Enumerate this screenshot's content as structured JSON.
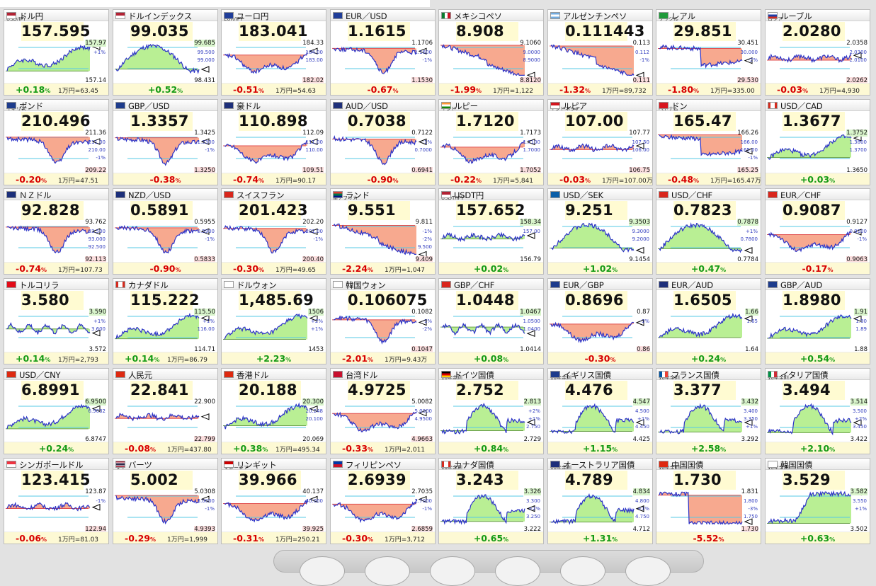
{
  "palette": {
    "up_fill": "#b9ef94",
    "down_fill": "#f7a98f",
    "line": "#2c33c8",
    "ref_line": "#55c9e6",
    "baseline": "#e05050"
  },
  "tiles": [
    {
      "name": "ドル円",
      "sub": "USD/JPY",
      "flag": "us",
      "price": "157.595",
      "change": "+0.18",
      "conv": "1万円=63.45",
      "top": "157.97",
      "bot": "157.14",
      "grid": [
        "+1%"
      ],
      "shape": "rise"
    },
    {
      "name": "ドルインデックス",
      "sub": "",
      "flag": "us",
      "price": "99.035",
      "change": "+0.52",
      "conv": "",
      "top": "99.685",
      "bot": "98.431",
      "grid": [
        "99.500",
        "99.000"
      ],
      "shape": "peak"
    },
    {
      "name": "ユーロ円",
      "sub": "EUR/JPY",
      "flag": "eu",
      "price": "183.041",
      "change": "-0.51",
      "conv": "1万円=54.63",
      "top": "184.33",
      "bot": "182.02",
      "grid": [
        "184.00",
        "183.00"
      ],
      "shape": "sag"
    },
    {
      "name": "EUR／USD",
      "sub": "",
      "flag": "eu",
      "price": "1.1615",
      "change": "-0.67",
      "conv": "",
      "top": "1.1706",
      "bot": "1.1530",
      "grid": [
        "1.1600",
        "-1%"
      ],
      "shape": "dip"
    },
    {
      "name": "メキシコペソ",
      "sub": "",
      "flag": "mx",
      "price": "8.908",
      "change": "-1.99",
      "conv": "1万円=1,122",
      "top": "9.1060",
      "bot": "8.8120",
      "grid": [
        "9.0000",
        "8.9000"
      ],
      "shape": "fall"
    },
    {
      "name": "アルゼンチンペソ",
      "sub": "",
      "flag": "ar",
      "price": "0.111443",
      "change": "-1.32",
      "conv": "1万円=89,732",
      "top": "0.113",
      "bot": "0.111",
      "grid": [
        "0.112",
        "-1%"
      ],
      "shape": "fall"
    },
    {
      "name": "レアル",
      "sub": "ブラジル",
      "flag": "br",
      "price": "29.851",
      "change": "-1.80",
      "conv": "1万円=335.00",
      "top": "30.451",
      "bot": "29.530",
      "grid": [
        "30.000",
        "-2%"
      ],
      "shape": "drop"
    },
    {
      "name": "ルーブル",
      "sub": "ロシア",
      "flag": "ru",
      "price": "2.0280",
      "change": "-0.03",
      "conv": "1万円=4,930",
      "top": "2.0358",
      "bot": "2.0262",
      "grid": [
        "2.0300",
        "2.0100"
      ],
      "shape": "flat"
    },
    {
      "name": "ポンド",
      "sub": "イギリス",
      "flag": "uk",
      "price": "210.496",
      "change": "-0.20",
      "conv": "1万円=47.51",
      "top": "211.36",
      "bot": "209.22",
      "grid": [
        "211.00",
        "210.00",
        "-1%"
      ],
      "shape": "dip"
    },
    {
      "name": "GBP／USD",
      "sub": "",
      "flag": "uk",
      "price": "1.3357",
      "change": "-0.38",
      "conv": "",
      "top": "1.3425",
      "bot": "1.3250",
      "grid": [
        "1.3300",
        "-1%"
      ],
      "shape": "dip"
    },
    {
      "name": "豪ドル",
      "sub": "",
      "flag": "au",
      "price": "110.898",
      "change": "-0.74",
      "conv": "1万円=90.17",
      "top": "112.09",
      "bot": "109.51",
      "grid": [
        "111.00",
        "110.00"
      ],
      "shape": "sag"
    },
    {
      "name": "AUD／USD",
      "sub": "",
      "flag": "au",
      "price": "0.7038",
      "change": "-0.90",
      "conv": "",
      "top": "0.7122",
      "bot": "0.6941",
      "grid": [
        "-1%",
        "0.7000"
      ],
      "shape": "dip"
    },
    {
      "name": "ルピー",
      "sub": "インド",
      "flag": "in",
      "price": "1.7120",
      "change": "-0.22",
      "conv": "1万円=5,841",
      "top": "1.7173",
      "bot": "1.7052",
      "grid": [
        "1.7100",
        "1.7000"
      ],
      "shape": "sag"
    },
    {
      "name": "ルピア",
      "sub": "インドネシア",
      "flag": "id",
      "price": "107.00",
      "change": "-0.03",
      "conv": "1万円=107.00万",
      "top": "107.77",
      "bot": "106.75",
      "grid": [
        "107.50",
        "106.00"
      ],
      "shape": "flat"
    },
    {
      "name": "ドン",
      "sub": "ベトナム",
      "flag": "vn",
      "price": "165.47",
      "change": "-0.48",
      "conv": "1万円=165.47万",
      "top": "166.26",
      "bot": "165.25",
      "grid": [
        "166.00",
        "165.00",
        "-1%"
      ],
      "shape": "drop"
    },
    {
      "name": "USD／CAD",
      "sub": "",
      "flag": "ca",
      "price": "1.3677",
      "change": "+0.03",
      "conv": "",
      "top": "1.3752",
      "bot": "1.3650",
      "grid": [
        "1.3800",
        "1.3700"
      ],
      "shape": "rise"
    },
    {
      "name": "ＮＺドル",
      "sub": "",
      "flag": "nz",
      "price": "92.828",
      "change": "-0.74",
      "conv": "1万円=107.73",
      "top": "93.762",
      "bot": "92.113",
      "grid": [
        "93.500",
        "93.000",
        "92.500"
      ],
      "shape": "dip"
    },
    {
      "name": "NZD／USD",
      "sub": "",
      "flag": "nz",
      "price": "0.5891",
      "change": "-0.90",
      "conv": "",
      "top": "0.5955",
      "bot": "0.5833",
      "grid": [
        "0.5900",
        "-1%"
      ],
      "shape": "dip"
    },
    {
      "name": "スイスフラン",
      "sub": "",
      "flag": "ch",
      "price": "201.423",
      "change": "-0.30",
      "conv": "1万円=49.65",
      "top": "202.20",
      "bot": "200.40",
      "grid": [
        "201.00",
        "-1%"
      ],
      "shape": "dip"
    },
    {
      "name": "ランド",
      "sub": "南アフリカ",
      "flag": "za",
      "price": "9.551",
      "change": "-2.24",
      "conv": "1万円=1,047",
      "top": "9.811",
      "bot": "9.409",
      "grid": [
        "-1%",
        "-2%",
        "9.500"
      ],
      "shape": "fall"
    },
    {
      "name": "USDT円",
      "sub": "USDT/JPY",
      "flag": "us",
      "price": "157.652",
      "change": "+0.02",
      "conv": "",
      "top": "158.34",
      "bot": "156.79",
      "grid": [
        "157.00"
      ],
      "shape": "flat"
    },
    {
      "name": "USD／SEK",
      "sub": "",
      "flag": "se",
      "price": "9.251",
      "change": "+1.02",
      "conv": "",
      "top": "9.3503",
      "bot": "9.1454",
      "grid": [
        "9.3000",
        "9.2000"
      ],
      "shape": "peak"
    },
    {
      "name": "USD／CHF",
      "sub": "",
      "flag": "ch",
      "price": "0.7823",
      "change": "+0.47",
      "conv": "",
      "top": "0.7878",
      "bot": "0.7784",
      "grid": [
        "+1%",
        "0.7800"
      ],
      "shape": "peak"
    },
    {
      "name": "EUR／CHF",
      "sub": "",
      "flag": "ch",
      "price": "0.9087",
      "change": "-0.17",
      "conv": "",
      "top": "0.9127",
      "bot": "0.9063",
      "grid": [
        "0.9100",
        "-1%"
      ],
      "shape": "sag"
    },
    {
      "name": "トルコリラ",
      "sub": "",
      "flag": "tr",
      "price": "3.580",
      "change": "+0.14",
      "conv": "1万円=2,793",
      "top": "3.590",
      "bot": "3.572",
      "grid": [
        "+1%",
        "3.600"
      ],
      "shape": "noisy"
    },
    {
      "name": "カナダドル",
      "sub": "",
      "flag": "ca",
      "price": "115.222",
      "change": "+0.14",
      "conv": "1万円=86.79",
      "top": "115.50",
      "bot": "114.71",
      "grid": [
        "+1%",
        "116.00"
      ],
      "shape": "rise"
    },
    {
      "name": "ドルウォン",
      "sub": "",
      "flag": "kr",
      "price": "1,485.69",
      "change": "+2.23",
      "conv": "",
      "top": "1506",
      "bot": "1453",
      "grid": [
        "+2%",
        "+1%"
      ],
      "shape": "rise"
    },
    {
      "name": "韓国ウォン",
      "sub": "",
      "flag": "kr",
      "price": "0.106075",
      "change": "-2.01",
      "conv": "1万円=9.43万",
      "top": "0.1082",
      "bot": "0.1047",
      "grid": [
        "-1%",
        "-2%"
      ],
      "shape": "dip"
    },
    {
      "name": "GBP／CHF",
      "sub": "",
      "flag": "ch",
      "price": "1.0448",
      "change": "+0.08",
      "conv": "",
      "top": "1.0467",
      "bot": "1.0414",
      "grid": [
        "1.0500",
        "1.0400"
      ],
      "shape": "noisy"
    },
    {
      "name": "EUR／GBP",
      "sub": "",
      "flag": "uk",
      "price": "0.8696",
      "change": "-0.30",
      "conv": "",
      "top": "0.87",
      "bot": "0.86",
      "grid": [
        "-1%"
      ],
      "shape": "sag"
    },
    {
      "name": "EUR／AUD",
      "sub": "",
      "flag": "au",
      "price": "1.6505",
      "change": "+0.24",
      "conv": "",
      "top": "1.66",
      "bot": "1.64",
      "grid": [
        "1.65"
      ],
      "shape": "rise"
    },
    {
      "name": "GBP／AUD",
      "sub": "",
      "flag": "uk",
      "price": "1.8980",
      "change": "+0.54",
      "conv": "",
      "top": "1.91",
      "bot": "1.88",
      "grid": [
        "1.90",
        "1.89"
      ],
      "shape": "rise"
    },
    {
      "name": "USD／CNY",
      "sub": "",
      "flag": "cn",
      "price": "6.8991",
      "change": "+0.24",
      "conv": "",
      "top": "6.9500",
      "bot": "6.8747",
      "grid": [
        "6.9032"
      ],
      "shape": "rise"
    },
    {
      "name": "人民元",
      "sub": "",
      "flag": "cn",
      "price": "22.841",
      "change": "-0.08",
      "conv": "1万円=437.80",
      "top": "22.900",
      "bot": "22.799",
      "grid": [],
      "shape": "flat"
    },
    {
      "name": "香港ドル",
      "sub": "",
      "flag": "hk",
      "price": "20.188",
      "change": "+0.38",
      "conv": "1万円=495.34",
      "top": "20.300",
      "bot": "20.069",
      "grid": [
        "20.248",
        "20.100"
      ],
      "shape": "rise"
    },
    {
      "name": "台湾ドル",
      "sub": "",
      "flag": "tw",
      "price": "4.9725",
      "change": "-0.33",
      "conv": "1万円=2,011",
      "top": "5.0082",
      "bot": "4.9663",
      "grid": [
        "5.0000",
        "4.9500"
      ],
      "shape": "sag"
    },
    {
      "name": "ドイツ国債",
      "sub": "10年金利",
      "flag": "de",
      "price": "2.752",
      "change": "+0.84",
      "conv": "",
      "top": "2.813",
      "bot": "2.729",
      "grid": [
        "+2%",
        "+1%",
        "2.750"
      ],
      "shape": "bond"
    },
    {
      "name": "イギリス国債",
      "sub": "10年金利",
      "flag": "uk",
      "price": "4.476",
      "change": "+1.15",
      "conv": "",
      "top": "4.547",
      "bot": "4.425",
      "grid": [
        "4.500",
        "+1%",
        "4.450"
      ],
      "shape": "bond"
    },
    {
      "name": "フランス国債",
      "sub": "10年金利",
      "flag": "fr",
      "price": "3.377",
      "change": "+2.58",
      "conv": "",
      "top": "3.432",
      "bot": "3.292",
      "grid": [
        "3.400",
        "3.350",
        "+1%"
      ],
      "shape": "bond"
    },
    {
      "name": "イタリア国債",
      "sub": "10年金利",
      "flag": "it",
      "price": "3.494",
      "change": "+2.10",
      "conv": "",
      "top": "3.514",
      "bot": "3.422",
      "grid": [
        "3.500",
        "+2%",
        "3.450"
      ],
      "shape": "bond"
    },
    {
      "name": "シンガポールドル",
      "sub": "",
      "flag": "sg",
      "price": "123.415",
      "change": "-0.06",
      "conv": "1万円=81.03",
      "top": "123.87",
      "bot": "122.94",
      "grid": [
        "-1%"
      ],
      "shape": "flat"
    },
    {
      "name": "バーツ",
      "sub": "タイ",
      "flag": "th",
      "price": "5.002",
      "change": "-0.29",
      "conv": "1万円=1,999",
      "top": "5.0308",
      "bot": "4.9393",
      "grid": [
        "5.0000",
        "-1%"
      ],
      "shape": "dip"
    },
    {
      "name": "リンギット",
      "sub": "マレーシア",
      "flag": "my",
      "price": "39.966",
      "change": "-0.31",
      "conv": "1万円=250.21",
      "top": "40.137",
      "bot": "39.925",
      "grid": [
        "40.000"
      ],
      "shape": "sag"
    },
    {
      "name": "フィリピンペソ",
      "sub": "",
      "flag": "ph",
      "price": "2.6939",
      "change": "-0.30",
      "conv": "1万円=3,712",
      "top": "2.7035",
      "bot": "2.6859",
      "grid": [
        "2.7000",
        "-1%"
      ],
      "shape": "sag"
    },
    {
      "name": "カナダ国債",
      "sub": "10年金利",
      "flag": "ca",
      "price": "3.243",
      "change": "+0.65",
      "conv": "",
      "top": "3.326",
      "bot": "3.222",
      "grid": [
        "3.300",
        "+2%",
        "3.250"
      ],
      "shape": "bond"
    },
    {
      "name": "オーストラリア国債",
      "sub": "10年金利",
      "flag": "au",
      "price": "4.789",
      "change": "+1.31",
      "conv": "",
      "top": "4.834",
      "bot": "4.712",
      "grid": [
        "4.800",
        "+1%",
        "4.750"
      ],
      "shape": "bond"
    },
    {
      "name": "中国国債",
      "sub": "10年金利",
      "flag": "cn",
      "price": "1.730",
      "change": "-5.52",
      "conv": "",
      "top": "1.831",
      "bot": "1.730",
      "grid": [
        "1.800",
        "-3%",
        "1.750"
      ],
      "shape": "cliff"
    },
    {
      "name": "韓国国債",
      "sub": "10年金利",
      "flag": "kr",
      "price": "3.529",
      "change": "+0.63",
      "conv": "",
      "top": "3.582",
      "bot": "3.502",
      "grid": [
        "3.550",
        "+1%"
      ],
      "shape": "spike"
    }
  ],
  "dock": {
    "buttons": [
      "",
      "",
      "",
      "",
      "",
      ""
    ]
  }
}
